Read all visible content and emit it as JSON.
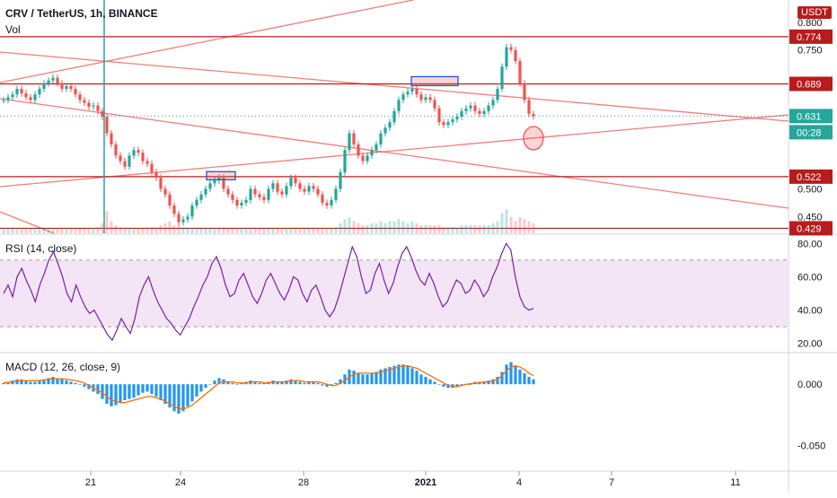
{
  "header": {
    "symbol": "CRV / TetherUS, 1h, BINANCE",
    "vol_label": "Vol",
    "rsi_label": "RSI (14, close)",
    "macd_label": "MACD (12, 26, close, 9)",
    "currency_button": "USDT"
  },
  "colors": {
    "up": "#26a69a",
    "down": "#ef5350",
    "level_line": "#b71c1c",
    "badge_red": "#b71c1c",
    "rsi_line": "#7b1fa2",
    "rsi_band": "#f3e5f5",
    "macd_hist": "#2196f3",
    "signal": "#ff6d00",
    "trend": "#ef5350"
  },
  "chart_data": [
    {
      "type": "candlestick",
      "name": "price",
      "ylim": [
        0.42,
        0.84
      ],
      "y_ticks": [
        "0.800",
        "0.750",
        "0.500",
        "0.450"
      ],
      "levels": [
        0.774,
        0.689,
        0.522,
        0.429
      ],
      "level_labels": [
        "0.774",
        "0.689",
        "0.522",
        "0.429"
      ],
      "last_price": "0.631",
      "countdown": "00:28",
      "x_ticks": [
        "21",
        "24",
        "28",
        "2021",
        "4",
        "7",
        "11"
      ],
      "close_series": [
        0.66,
        0.665,
        0.67,
        0.68,
        0.672,
        0.665,
        0.66,
        0.67,
        0.68,
        0.69,
        0.695,
        0.7,
        0.69,
        0.68,
        0.685,
        0.68,
        0.67,
        0.66,
        0.655,
        0.648,
        0.65,
        0.64,
        0.63,
        0.6,
        0.58,
        0.56,
        0.55,
        0.54,
        0.56,
        0.57,
        0.565,
        0.55,
        0.545,
        0.53,
        0.52,
        0.5,
        0.49,
        0.47,
        0.455,
        0.44,
        0.445,
        0.45,
        0.47,
        0.48,
        0.49,
        0.5,
        0.51,
        0.515,
        0.52,
        0.5,
        0.49,
        0.48,
        0.47,
        0.475,
        0.48,
        0.5,
        0.49,
        0.485,
        0.48,
        0.5,
        0.51,
        0.495,
        0.49,
        0.505,
        0.52,
        0.51,
        0.5,
        0.495,
        0.505,
        0.5,
        0.49,
        0.475,
        0.47,
        0.48,
        0.5,
        0.53,
        0.57,
        0.6,
        0.58,
        0.56,
        0.55,
        0.56,
        0.57,
        0.58,
        0.6,
        0.61,
        0.62,
        0.64,
        0.66,
        0.67,
        0.675,
        0.68,
        0.67,
        0.66,
        0.665,
        0.66,
        0.645,
        0.62,
        0.615,
        0.62,
        0.625,
        0.63,
        0.64,
        0.645,
        0.65,
        0.64,
        0.635,
        0.64,
        0.65,
        0.66,
        0.68,
        0.72,
        0.755,
        0.75,
        0.73,
        0.69,
        0.66,
        0.635,
        0.631
      ],
      "volume_series": [
        0.1,
        0.1,
        0.12,
        0.1,
        0.1,
        0.1,
        0.12,
        0.1,
        0.1,
        0.12,
        0.1,
        0.1,
        0.1,
        0.1,
        0.1,
        0.1,
        0.1,
        0.12,
        0.1,
        0.1,
        0.1,
        0.15,
        0.25,
        0.55,
        0.3,
        0.2,
        0.15,
        0.1,
        0.1,
        0.1,
        0.1,
        0.12,
        0.1,
        0.15,
        0.15,
        0.2,
        0.25,
        0.3,
        0.2,
        0.2,
        0.15,
        0.12,
        0.1,
        0.1,
        0.12,
        0.12,
        0.12,
        0.1,
        0.12,
        0.12,
        0.1,
        0.1,
        0.1,
        0.12,
        0.1,
        0.1,
        0.12,
        0.1,
        0.1,
        0.12,
        0.12,
        0.1,
        0.1,
        0.1,
        0.12,
        0.1,
        0.1,
        0.1,
        0.12,
        0.15,
        0.12,
        0.1,
        0.1,
        0.1,
        0.15,
        0.25,
        0.35,
        0.4,
        0.3,
        0.25,
        0.2,
        0.2,
        0.25,
        0.25,
        0.3,
        0.25,
        0.3,
        0.3,
        0.35,
        0.3,
        0.25,
        0.3,
        0.25,
        0.2,
        0.2,
        0.2,
        0.2,
        0.2,
        0.15,
        0.15,
        0.15,
        0.15,
        0.2,
        0.2,
        0.2,
        0.2,
        0.2,
        0.2,
        0.2,
        0.25,
        0.3,
        0.5,
        0.6,
        0.4,
        0.3,
        0.4,
        0.35,
        0.3,
        0.25
      ]
    },
    {
      "type": "line",
      "name": "RSI (14, close)",
      "ylim": [
        15,
        85
      ],
      "y_ticks": [
        "80.00",
        "60.00",
        "40.00",
        "20.00"
      ],
      "bands": [
        70,
        30
      ],
      "values": [
        50,
        55,
        48,
        60,
        65,
        58,
        52,
        45,
        55,
        62,
        70,
        75,
        68,
        60,
        50,
        45,
        55,
        48,
        42,
        38,
        40,
        35,
        30,
        25,
        22,
        28,
        35,
        30,
        26,
        35,
        48,
        55,
        60,
        52,
        45,
        40,
        35,
        32,
        28,
        25,
        30,
        35,
        42,
        48,
        55,
        60,
        68,
        72,
        65,
        55,
        48,
        50,
        58,
        62,
        55,
        48,
        44,
        50,
        58,
        62,
        56,
        50,
        46,
        52,
        60,
        58,
        50,
        45,
        52,
        55,
        48,
        40,
        36,
        40,
        48,
        58,
        68,
        78,
        72,
        60,
        50,
        52,
        62,
        68,
        58,
        50,
        56,
        66,
        74,
        78,
        72,
        64,
        58,
        55,
        62,
        56,
        48,
        42,
        45,
        52,
        58,
        56,
        50,
        52,
        58,
        54,
        48,
        52,
        60,
        66,
        74,
        80,
        76,
        60,
        48,
        42,
        40,
        41
      ],
      "x_ticks": [
        "21",
        "24",
        "28",
        "2021",
        "4",
        "7",
        "11"
      ]
    },
    {
      "type": "histogram+line",
      "name": "MACD (12, 26, close, 9)",
      "ylim": [
        -0.07,
        0.025
      ],
      "y_ticks": [
        "0.000",
        "-0.050"
      ],
      "hist": [
        0.001,
        0.002,
        0.003,
        0.004,
        0.004,
        0.003,
        0.002,
        0.002,
        0.003,
        0.004,
        0.005,
        0.006,
        0.005,
        0.004,
        0.003,
        0.002,
        0.001,
        0.0,
        -0.002,
        -0.004,
        -0.006,
        -0.008,
        -0.012,
        -0.016,
        -0.018,
        -0.017,
        -0.015,
        -0.013,
        -0.012,
        -0.011,
        -0.009,
        -0.007,
        -0.006,
        -0.008,
        -0.01,
        -0.013,
        -0.016,
        -0.019,
        -0.022,
        -0.024,
        -0.022,
        -0.018,
        -0.014,
        -0.01,
        -0.006,
        -0.003,
        0.0,
        0.003,
        0.005,
        0.004,
        0.002,
        0.001,
        0.0,
        0.001,
        0.002,
        0.003,
        0.002,
        0.001,
        0.001,
        0.002,
        0.003,
        0.002,
        0.002,
        0.003,
        0.004,
        0.003,
        0.002,
        0.001,
        0.002,
        0.002,
        0.001,
        -0.001,
        -0.002,
        -0.001,
        0.001,
        0.004,
        0.008,
        0.012,
        0.011,
        0.009,
        0.008,
        0.008,
        0.009,
        0.01,
        0.012,
        0.013,
        0.014,
        0.015,
        0.016,
        0.016,
        0.015,
        0.013,
        0.011,
        0.008,
        0.006,
        0.004,
        0.002,
        0.0,
        -0.002,
        -0.003,
        -0.003,
        -0.002,
        -0.001,
        0.0,
        0.001,
        0.002,
        0.002,
        0.002,
        0.003,
        0.004,
        0.006,
        0.01,
        0.016,
        0.018,
        0.015,
        0.012,
        0.009,
        0.006,
        0.004
      ],
      "signal": [
        0.001,
        0.0015,
        0.002,
        0.0025,
        0.003,
        0.003,
        0.003,
        0.003,
        0.003,
        0.0035,
        0.004,
        0.0045,
        0.0045,
        0.0045,
        0.004,
        0.0035,
        0.003,
        0.002,
        0.001,
        -0.001,
        -0.003,
        -0.005,
        -0.007,
        -0.01,
        -0.013,
        -0.014,
        -0.015,
        -0.015,
        -0.014,
        -0.013,
        -0.012,
        -0.011,
        -0.01,
        -0.01,
        -0.011,
        -0.012,
        -0.014,
        -0.016,
        -0.018,
        -0.02,
        -0.02,
        -0.019,
        -0.017,
        -0.014,
        -0.011,
        -0.008,
        -0.005,
        -0.002,
        0.001,
        0.002,
        0.002,
        0.002,
        0.001,
        0.001,
        0.001,
        0.002,
        0.002,
        0.002,
        0.001,
        0.001,
        0.002,
        0.002,
        0.002,
        0.002,
        0.003,
        0.003,
        0.003,
        0.002,
        0.002,
        0.002,
        0.002,
        0.001,
        0.0,
        -0.001,
        -0.001,
        0.001,
        0.003,
        0.006,
        0.008,
        0.009,
        0.009,
        0.009,
        0.009,
        0.009,
        0.01,
        0.011,
        0.012,
        0.013,
        0.014,
        0.015,
        0.015,
        0.014,
        0.013,
        0.011,
        0.009,
        0.007,
        0.005,
        0.003,
        0.001,
        -0.001,
        -0.002,
        -0.002,
        -0.001,
        0.0,
        0.0,
        0.001,
        0.001,
        0.002,
        0.002,
        0.003,
        0.004,
        0.007,
        0.011,
        0.014,
        0.015,
        0.014,
        0.012,
        0.009,
        0.007
      ],
      "x_ticks": [
        "21",
        "24",
        "28",
        "2021",
        "4",
        "7",
        "11"
      ]
    }
  ]
}
